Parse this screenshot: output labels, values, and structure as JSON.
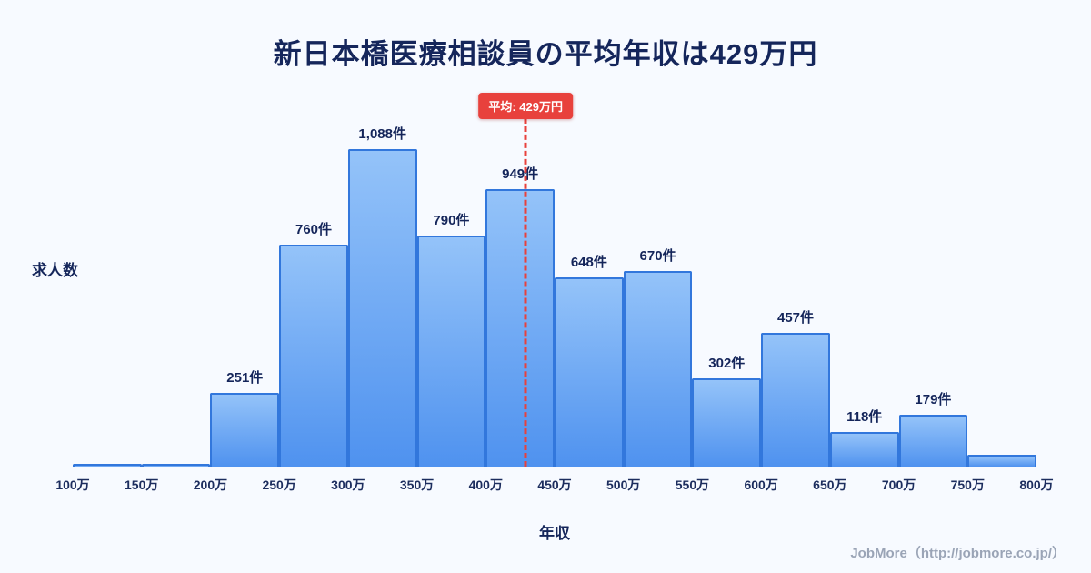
{
  "title": "新日本橋医療相談員の平均年収は429万円",
  "chart_data": {
    "type": "bar",
    "title": "新日本橋医療相談員の平均年収は429万円",
    "xlabel": "年収",
    "ylabel": "求人数",
    "x_range": [
      100,
      800
    ],
    "ylim": [
      0,
      1240
    ],
    "grid": false,
    "legend": "none",
    "x_tick_labels": [
      "100万",
      "150万",
      "200万",
      "250万",
      "300万",
      "350万",
      "400万",
      "450万",
      "500万",
      "550万",
      "600万",
      "650万",
      "700万",
      "750万",
      "800万"
    ],
    "bars": [
      {
        "x_start": 100,
        "x_end": 150,
        "value": 8,
        "label": ""
      },
      {
        "x_start": 150,
        "x_end": 200,
        "value": 8,
        "label": ""
      },
      {
        "x_start": 200,
        "x_end": 250,
        "value": 251,
        "label": "251件"
      },
      {
        "x_start": 250,
        "x_end": 300,
        "value": 760,
        "label": "760件"
      },
      {
        "x_start": 300,
        "x_end": 350,
        "value": 1088,
        "label": "1,088件"
      },
      {
        "x_start": 350,
        "x_end": 400,
        "value": 790,
        "label": "790件"
      },
      {
        "x_start": 400,
        "x_end": 450,
        "value": 949,
        "label": "949件"
      },
      {
        "x_start": 450,
        "x_end": 500,
        "value": 648,
        "label": "648件"
      },
      {
        "x_start": 500,
        "x_end": 550,
        "value": 670,
        "label": "670件"
      },
      {
        "x_start": 550,
        "x_end": 600,
        "value": 302,
        "label": "302件"
      },
      {
        "x_start": 600,
        "x_end": 650,
        "value": 457,
        "label": "457件"
      },
      {
        "x_start": 650,
        "x_end": 700,
        "value": 118,
        "label": "118件"
      },
      {
        "x_start": 700,
        "x_end": 750,
        "value": 179,
        "label": "179件"
      },
      {
        "x_start": 750,
        "x_end": 800,
        "value": 40,
        "label": ""
      }
    ],
    "average_line": {
      "x": 429,
      "label": "平均: 429万円",
      "color": "#e8413c"
    },
    "colors": {
      "background": "#f7faff",
      "bar_fill_top": "#94c3f9",
      "bar_fill_bottom": "#4f92ef",
      "bar_border": "#3277dc",
      "text": "#14255a",
      "average": "#e8413c"
    }
  },
  "footer": {
    "credit": "JobMore（http://jobmore.co.jp/）"
  }
}
